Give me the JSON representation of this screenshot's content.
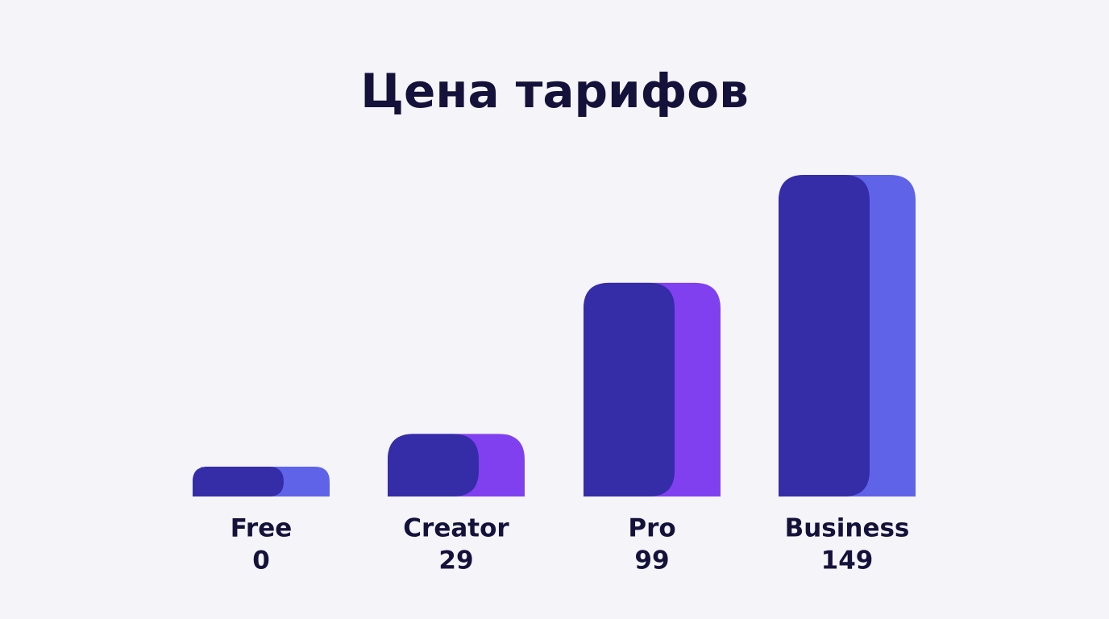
{
  "chart_data": {
    "type": "bar",
    "title": "Цена тарифов",
    "categories": [
      "Free",
      "Creator",
      "Pro",
      "Business"
    ],
    "values": [
      0,
      29,
      99,
      149
    ],
    "color": "#352ca8",
    "accent_colors": [
      "#5f63e8",
      "#8040f0",
      "#8040f0",
      "#5f63e8"
    ]
  }
}
